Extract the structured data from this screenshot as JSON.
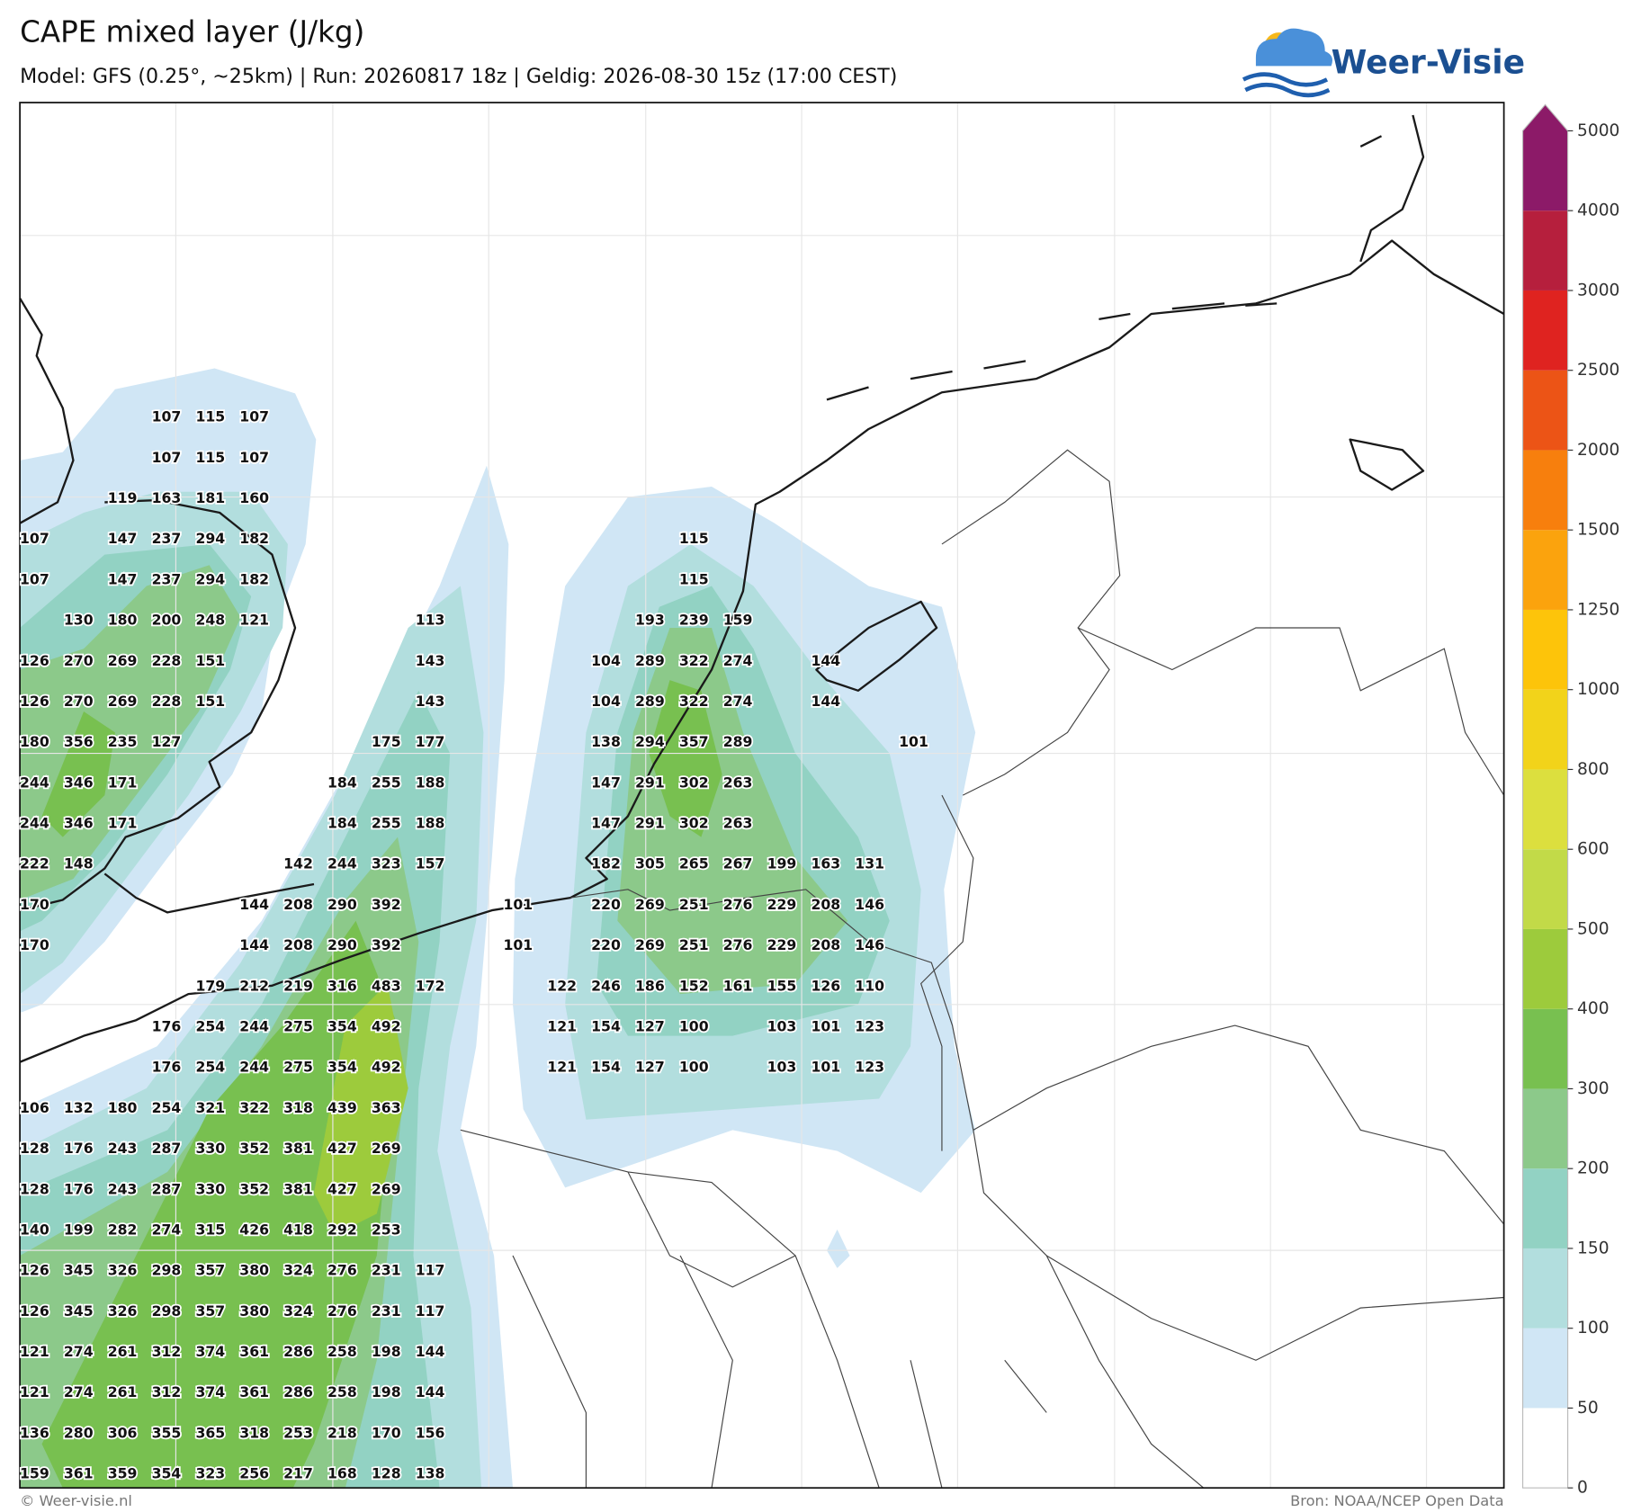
{
  "header": {
    "title": "CAPE mixed layer (J/kg)",
    "subtitle": "Model: GFS (0.25°, ~25km)  |  Run: 20260817 18z  |  Geldig: 2026-08-30 15z (17:00 CEST)"
  },
  "logo": {
    "text": "Weer-Visie"
  },
  "map": {
    "rows": [
      [
        null,
        null,
        null,
        107,
        115,
        107
      ],
      [
        null,
        null,
        null,
        107,
        115,
        107
      ],
      [
        null,
        null,
        119,
        163,
        181,
        160
      ],
      [
        107,
        null,
        147,
        237,
        294,
        182,
        null,
        null,
        null,
        null,
        null,
        null,
        null,
        null,
        null,
        115
      ],
      [
        107,
        null,
        147,
        237,
        294,
        182,
        null,
        null,
        null,
        null,
        null,
        null,
        null,
        null,
        null,
        115
      ],
      [
        null,
        130,
        180,
        200,
        248,
        121,
        null,
        null,
        null,
        113,
        null,
        null,
        null,
        null,
        193,
        239,
        159
      ],
      [
        126,
        270,
        269,
        228,
        151,
        null,
        null,
        null,
        null,
        143,
        null,
        null,
        null,
        104,
        289,
        322,
        274,
        null,
        144
      ],
      [
        126,
        270,
        269,
        228,
        151,
        null,
        null,
        null,
        null,
        143,
        null,
        null,
        null,
        104,
        289,
        322,
        274,
        null,
        144
      ],
      [
        180,
        356,
        235,
        127,
        null,
        null,
        null,
        null,
        175,
        177,
        null,
        null,
        null,
        138,
        294,
        357,
        289,
        null,
        null,
        null,
        101
      ],
      [
        244,
        346,
        171,
        null,
        null,
        null,
        null,
        184,
        255,
        188,
        null,
        null,
        null,
        147,
        291,
        302,
        263
      ],
      [
        244,
        346,
        171,
        null,
        null,
        null,
        null,
        184,
        255,
        188,
        null,
        null,
        null,
        147,
        291,
        302,
        263
      ],
      [
        222,
        148,
        null,
        null,
        null,
        null,
        142,
        244,
        323,
        157,
        null,
        null,
        null,
        182,
        305,
        265,
        267,
        199,
        163,
        131
      ],
      [
        170,
        null,
        null,
        null,
        null,
        144,
        208,
        290,
        392,
        null,
        null,
        101,
        null,
        220,
        269,
        251,
        276,
        229,
        208,
        146
      ],
      [
        170,
        null,
        null,
        null,
        null,
        144,
        208,
        290,
        392,
        null,
        null,
        101,
        null,
        220,
        269,
        251,
        276,
        229,
        208,
        146
      ],
      [
        null,
        null,
        null,
        null,
        179,
        212,
        219,
        316,
        483,
        172,
        null,
        null,
        122,
        246,
        186,
        152,
        161,
        155,
        126,
        110
      ],
      [
        null,
        null,
        null,
        176,
        254,
        244,
        275,
        354,
        492,
        null,
        null,
        null,
        121,
        154,
        127,
        100,
        null,
        103,
        101,
        123
      ],
      [
        null,
        null,
        null,
        176,
        254,
        244,
        275,
        354,
        492,
        null,
        null,
        null,
        121,
        154,
        127,
        100,
        null,
        103,
        101,
        123
      ],
      [
        106,
        132,
        180,
        254,
        321,
        322,
        318,
        439,
        363
      ],
      [
        128,
        176,
        243,
        287,
        330,
        352,
        381,
        427,
        269
      ],
      [
        128,
        176,
        243,
        287,
        330,
        352,
        381,
        427,
        269
      ],
      [
        140,
        199,
        282,
        274,
        315,
        426,
        418,
        292,
        253
      ],
      [
        126,
        345,
        326,
        298,
        357,
        380,
        324,
        276,
        231,
        117
      ],
      [
        126,
        345,
        326,
        298,
        357,
        380,
        324,
        276,
        231,
        117
      ],
      [
        121,
        274,
        261,
        312,
        374,
        361,
        286,
        258,
        198,
        144
      ],
      [
        121,
        274,
        261,
        312,
        374,
        361,
        286,
        258,
        198,
        144
      ],
      [
        136,
        280,
        306,
        355,
        365,
        318,
        253,
        218,
        170,
        156
      ],
      [
        159,
        361,
        359,
        354,
        323,
        256,
        217,
        168,
        128,
        138
      ]
    ]
  },
  "colorbar": {
    "levels": [
      0,
      50,
      100,
      150,
      200,
      300,
      400,
      500,
      600,
      800,
      1000,
      1250,
      1500,
      2000,
      2500,
      3000,
      4000,
      5000
    ],
    "colors": [
      "#ffffff",
      "#d0e6f5",
      "#b2dede",
      "#92d2c3",
      "#8cc98a",
      "#78c050",
      "#9dcb3c",
      "#c2da48",
      "#dcdf3e",
      "#f2d31a",
      "#fdc40a",
      "#fba30d",
      "#f77f0d",
      "#ec5416",
      "#df2320",
      "#b61f3d",
      "#8c1a68"
    ],
    "extend_color": "#8c1a68"
  },
  "footer": {
    "left": "© Weer-visie.nl",
    "right": "Bron: NOAA/NCEP Open Data"
  }
}
